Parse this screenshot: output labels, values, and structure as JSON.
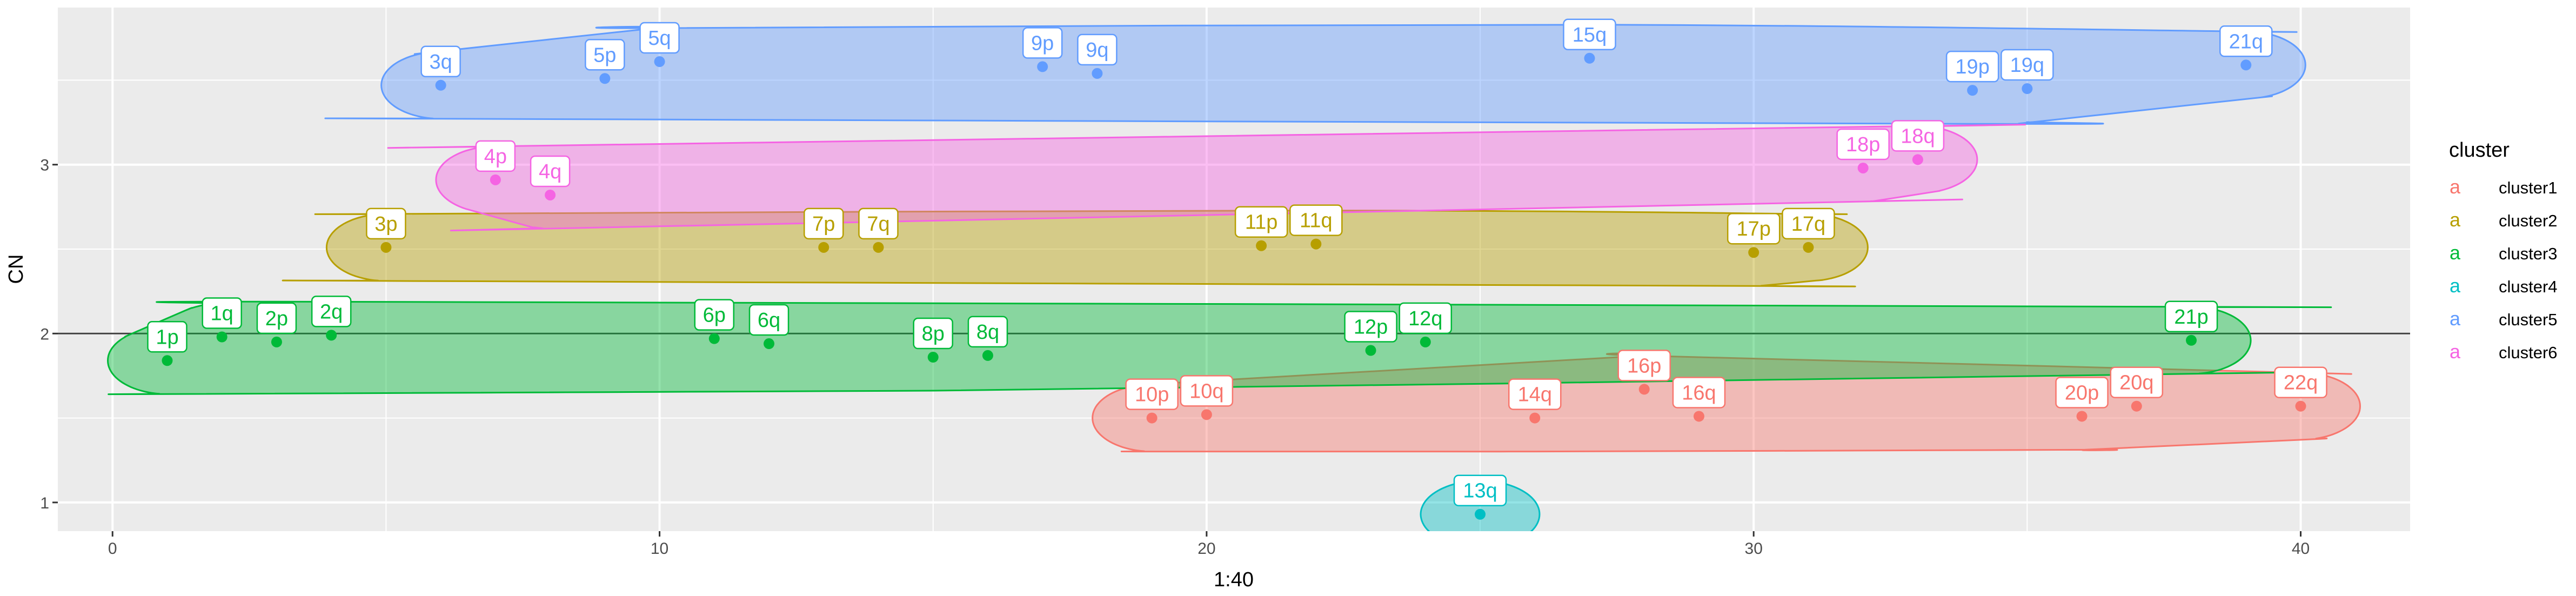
{
  "chart_data": {
    "type": "scatter",
    "title": "",
    "xlabel": "1:40",
    "ylabel": "CN",
    "xlim": [
      -1,
      42
    ],
    "ylim": [
      0.83,
      3.93
    ],
    "x_ticks": [
      0,
      10,
      20,
      30,
      40
    ],
    "y_ticks": [
      1,
      2,
      3
    ],
    "reference_line_y": 2,
    "grid": true,
    "legend": {
      "title": "cluster",
      "placement": "right",
      "key_glyph": "a",
      "entries": [
        "cluster1",
        "cluster2",
        "cluster3",
        "cluster4",
        "cluster5",
        "cluster6"
      ]
    },
    "series": [
      {
        "name": "cluster1",
        "color": "#F8766D",
        "points": [
          {
            "label": "10p",
            "x": 19,
            "y": 1.5
          },
          {
            "label": "10q",
            "x": 20,
            "y": 1.52
          },
          {
            "label": "14q",
            "x": 26,
            "y": 1.5
          },
          {
            "label": "16p",
            "x": 28,
            "y": 1.67
          },
          {
            "label": "16q",
            "x": 29,
            "y": 1.51
          },
          {
            "label": "20p",
            "x": 36,
            "y": 1.51
          },
          {
            "label": "20q",
            "x": 37,
            "y": 1.57
          },
          {
            "label": "22q",
            "x": 40,
            "y": 1.57
          }
        ]
      },
      {
        "name": "cluster2",
        "color": "#B79F00",
        "points": [
          {
            "label": "3p",
            "x": 5,
            "y": 2.51
          },
          {
            "label": "7p",
            "x": 13,
            "y": 2.51
          },
          {
            "label": "7q",
            "x": 14,
            "y": 2.51
          },
          {
            "label": "11p",
            "x": 21,
            "y": 2.52
          },
          {
            "label": "11q",
            "x": 22,
            "y": 2.53
          },
          {
            "label": "17p",
            "x": 30,
            "y": 2.48
          },
          {
            "label": "17q",
            "x": 31,
            "y": 2.51
          }
        ]
      },
      {
        "name": "cluster3",
        "color": "#00BA38",
        "points": [
          {
            "label": "1p",
            "x": 1,
            "y": 1.84
          },
          {
            "label": "1q",
            "x": 2,
            "y": 1.98
          },
          {
            "label": "2p",
            "x": 3,
            "y": 1.95
          },
          {
            "label": "2q",
            "x": 4,
            "y": 1.99
          },
          {
            "label": "6p",
            "x": 11,
            "y": 1.97
          },
          {
            "label": "6q",
            "x": 12,
            "y": 1.94
          },
          {
            "label": "8p",
            "x": 15,
            "y": 1.86
          },
          {
            "label": "8q",
            "x": 16,
            "y": 1.87
          },
          {
            "label": "12p",
            "x": 23,
            "y": 1.9
          },
          {
            "label": "12q",
            "x": 24,
            "y": 1.95
          },
          {
            "label": "21p",
            "x": 38,
            "y": 1.96
          }
        ]
      },
      {
        "name": "cluster4",
        "color": "#00BFC4",
        "points": [
          {
            "label": "13q",
            "x": 25,
            "y": 0.93
          }
        ]
      },
      {
        "name": "cluster5",
        "color": "#619CFF",
        "points": [
          {
            "label": "3q",
            "x": 6,
            "y": 3.47
          },
          {
            "label": "5p",
            "x": 9,
            "y": 3.51
          },
          {
            "label": "5q",
            "x": 10,
            "y": 3.61
          },
          {
            "label": "9p",
            "x": 17,
            "y": 3.58
          },
          {
            "label": "9q",
            "x": 18,
            "y": 3.54
          },
          {
            "label": "15q",
            "x": 27,
            "y": 3.63
          },
          {
            "label": "19p",
            "x": 34,
            "y": 3.44
          },
          {
            "label": "19q",
            "x": 35,
            "y": 3.45
          },
          {
            "label": "21q",
            "x": 39,
            "y": 3.59
          }
        ]
      },
      {
        "name": "cluster6",
        "color": "#F564E3",
        "points": [
          {
            "label": "4p",
            "x": 7,
            "y": 2.91
          },
          {
            "label": "4q",
            "x": 8,
            "y": 2.82
          },
          {
            "label": "18p",
            "x": 32,
            "y": 2.98
          },
          {
            "label": "18q",
            "x": 33,
            "y": 3.03
          }
        ]
      }
    ]
  }
}
